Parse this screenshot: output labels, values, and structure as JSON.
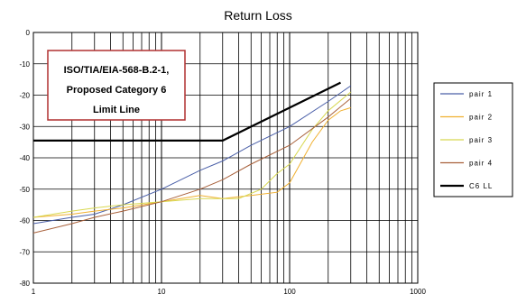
{
  "chart_data": {
    "type": "line",
    "title": "Return Loss",
    "xlabel": "",
    "ylabel": "",
    "x_scale": "log",
    "xlim": [
      1,
      1000
    ],
    "ylim": [
      -80,
      0
    ],
    "x_ticks": [
      "1",
      "10",
      "100",
      "1000"
    ],
    "y_ticks": [
      "0",
      "-10",
      "-20",
      "-30",
      "-40",
      "-50",
      "-60",
      "-70",
      "-80"
    ],
    "grid": true,
    "legend_position": "right",
    "annotation": {
      "lines": [
        "ISO/TIA/EIA-568-B.2-1,",
        "Proposed Category 6",
        "Limit Line"
      ],
      "border_color": "#b03030"
    },
    "series": [
      {
        "name": "pair 1",
        "color": "#4a5fa8",
        "x": [
          1,
          2,
          3,
          5,
          10,
          20,
          30,
          50,
          100,
          200,
          300
        ],
        "y": [
          -61,
          -59,
          -58,
          -55,
          -50,
          -44,
          -41,
          -36,
          -30,
          -22,
          -17
        ]
      },
      {
        "name": "pair 2",
        "color": "#f0b030",
        "x": [
          1,
          2,
          3,
          5,
          10,
          20,
          30,
          50,
          80,
          100,
          150,
          200,
          250,
          300
        ],
        "y": [
          -59,
          -58,
          -57,
          -56,
          -54,
          -52,
          -53,
          -52,
          -51,
          -48,
          -35,
          -28,
          -25,
          -24
        ]
      },
      {
        "name": "pair 3",
        "color": "#d8d850",
        "x": [
          1,
          2,
          3,
          5,
          10,
          20,
          40,
          60,
          80,
          100,
          150,
          200,
          300
        ],
        "y": [
          -59,
          -57,
          -56,
          -55,
          -54,
          -53,
          -53,
          -50,
          -45,
          -42,
          -31,
          -25,
          -19
        ]
      },
      {
        "name": "pair 4",
        "color": "#a8603a",
        "x": [
          1,
          2,
          3,
          5,
          10,
          20,
          30,
          50,
          100,
          200,
          300
        ],
        "y": [
          -64,
          -61,
          -59,
          -57,
          -54,
          -50,
          -47,
          -42,
          -36,
          -27,
          -21
        ]
      },
      {
        "name": "C6 LL",
        "color": "#000000",
        "x": [
          1,
          30,
          250
        ],
        "y": [
          -34.5,
          -34.5,
          -16
        ]
      }
    ]
  }
}
